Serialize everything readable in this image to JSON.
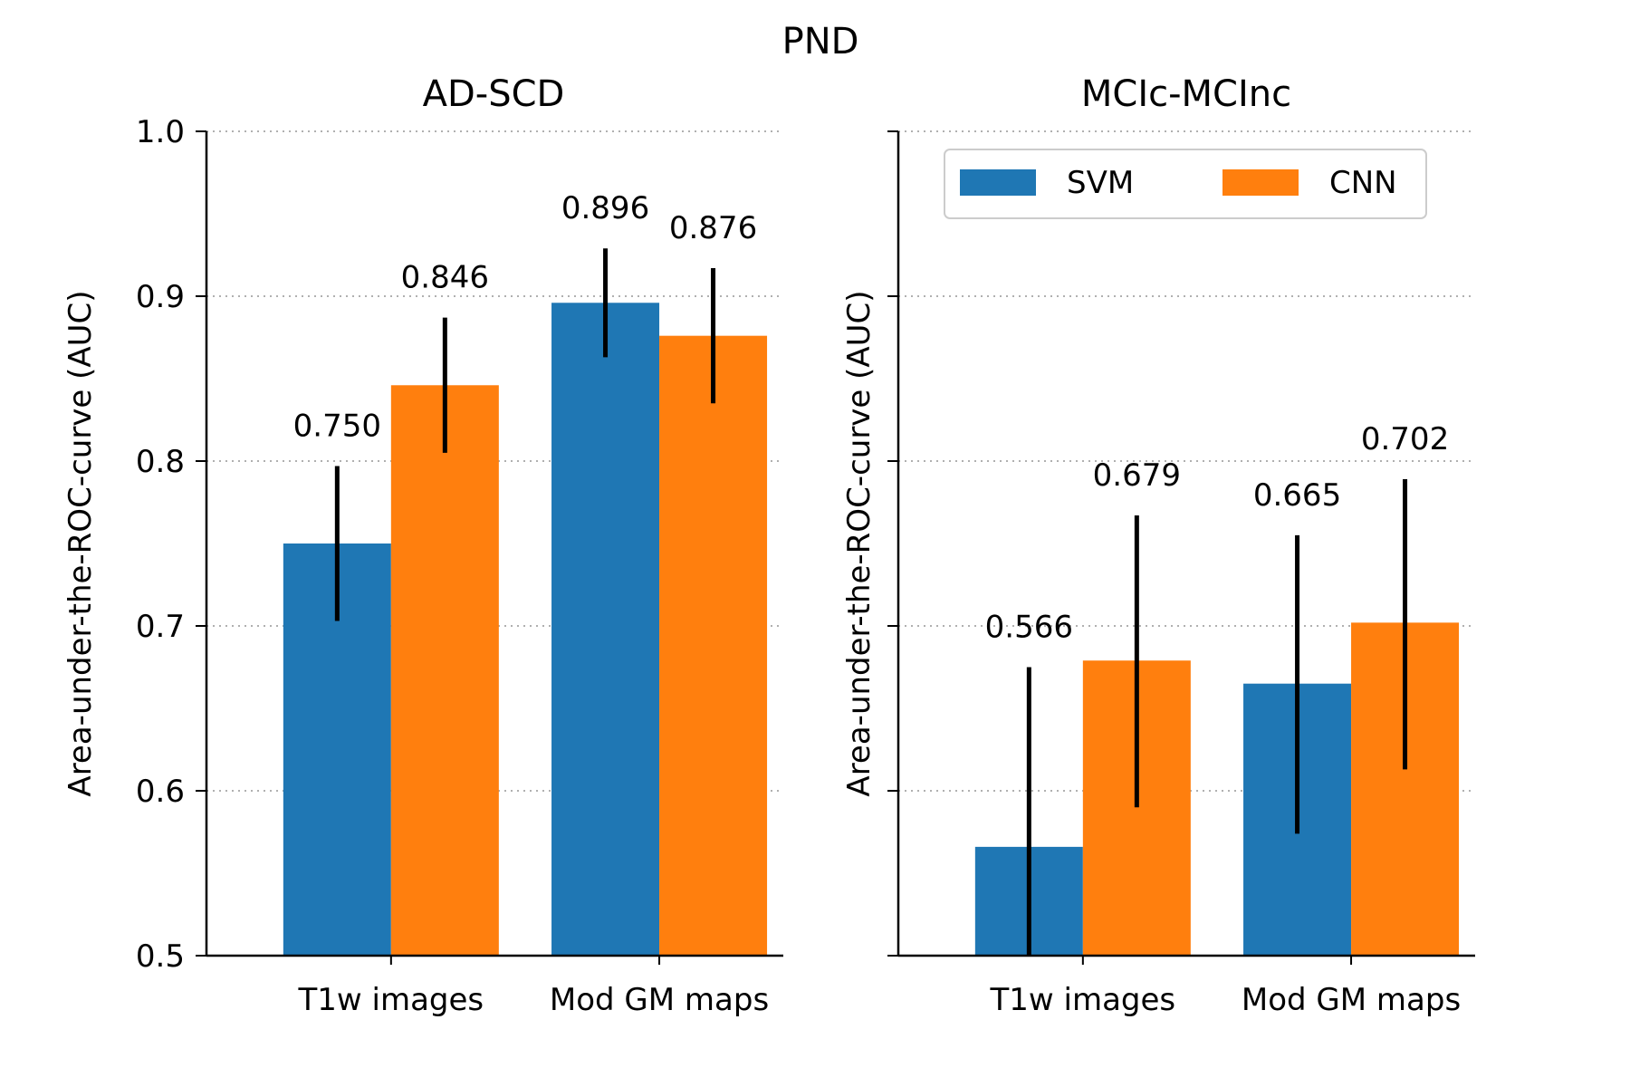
{
  "figure": {
    "title": "PND"
  },
  "colors": {
    "SVM": "#1f77b4",
    "CNN": "#ff7f0e",
    "grid": "#b0b0b0",
    "error_bar": "#000000"
  },
  "legend": {
    "items": [
      "SVM",
      "CNN"
    ],
    "placement": "upper-right",
    "location": "right-panel"
  },
  "chart_data": [
    {
      "type": "bar",
      "title": "AD-SCD",
      "ylabel": "Area-under-the-ROC-curve (AUC)",
      "ylim": [
        0.5,
        1.0
      ],
      "yticks": [
        0.5,
        0.6,
        0.7,
        0.8,
        0.9,
        1.0
      ],
      "ytick_labels": [
        "0.5",
        "0.6",
        "0.7",
        "0.8",
        "0.9",
        "1.0"
      ],
      "grid": "y-dotted",
      "categories": [
        "T1w images",
        "Mod GM maps"
      ],
      "series": [
        {
          "name": "SVM",
          "values": [
            0.75,
            0.896
          ],
          "value_labels": [
            "0.750",
            "0.896"
          ],
          "err_low": [
            0.703,
            0.863
          ],
          "err_high": [
            0.797,
            0.929
          ]
        },
        {
          "name": "CNN",
          "values": [
            0.846,
            0.876
          ],
          "value_labels": [
            "0.846",
            "0.876"
          ],
          "err_low": [
            0.805,
            0.835
          ],
          "err_high": [
            0.887,
            0.917
          ]
        }
      ]
    },
    {
      "type": "bar",
      "title": "MCIc-MCInc",
      "ylabel": "Area-under-the-ROC-curve (AUC)",
      "ylim": [
        0.5,
        1.0
      ],
      "yticks": [
        0.5,
        0.6,
        0.7,
        0.8,
        0.9,
        1.0
      ],
      "ytick_labels": [],
      "grid": "y-dotted",
      "categories": [
        "T1w images",
        "Mod GM maps"
      ],
      "series": [
        {
          "name": "SVM",
          "values": [
            0.566,
            0.665
          ],
          "value_labels": [
            "0.566",
            "0.665"
          ],
          "err_low": [
            0.5,
            0.574
          ],
          "err_high": [
            0.675,
            0.755
          ]
        },
        {
          "name": "CNN",
          "values": [
            0.679,
            0.702
          ],
          "value_labels": [
            "0.679",
            "0.702"
          ],
          "err_low": [
            0.59,
            0.613
          ],
          "err_high": [
            0.767,
            0.789
          ]
        }
      ]
    }
  ]
}
